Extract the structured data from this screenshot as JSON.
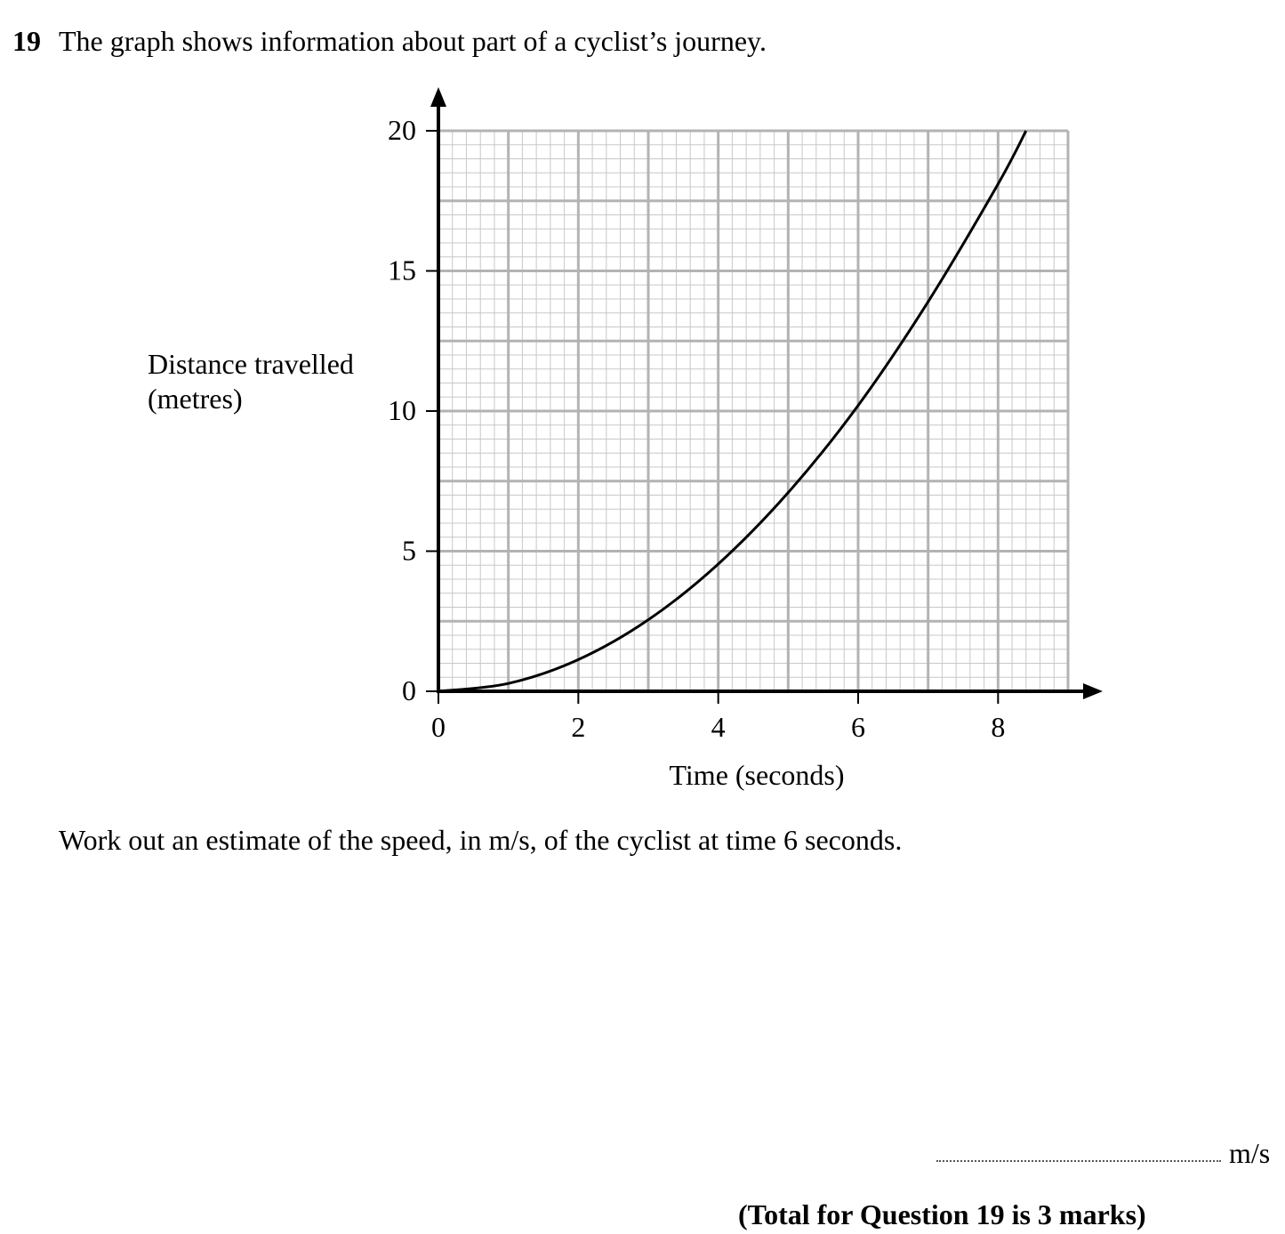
{
  "question": {
    "number": "19",
    "text": "The graph shows information about part of a cyclist’s journey.",
    "prompt": "Work out an estimate of the speed, in m/s, of the cyclist at time 6 seconds.",
    "answer_unit": "m/s",
    "total": "(Total for Question 19 is 3 marks)"
  },
  "chart_data": {
    "type": "line",
    "xlabel": "Time (seconds)",
    "ylabel_lines": [
      "Distance travelled",
      "(metres)"
    ],
    "xlim": [
      0,
      9
    ],
    "ylim": [
      0,
      20
    ],
    "x_ticks": [
      0,
      2,
      4,
      6,
      8
    ],
    "y_ticks": [
      0,
      5,
      10,
      15,
      20
    ],
    "grid": "on",
    "series": [
      {
        "x": [
          0,
          1,
          2,
          3,
          4,
          5,
          6,
          7,
          8,
          8.4
        ],
        "y": [
          0,
          0.28,
          1.13,
          2.55,
          4.54,
          7.09,
          10.2,
          13.9,
          18.1,
          20
        ]
      }
    ]
  }
}
